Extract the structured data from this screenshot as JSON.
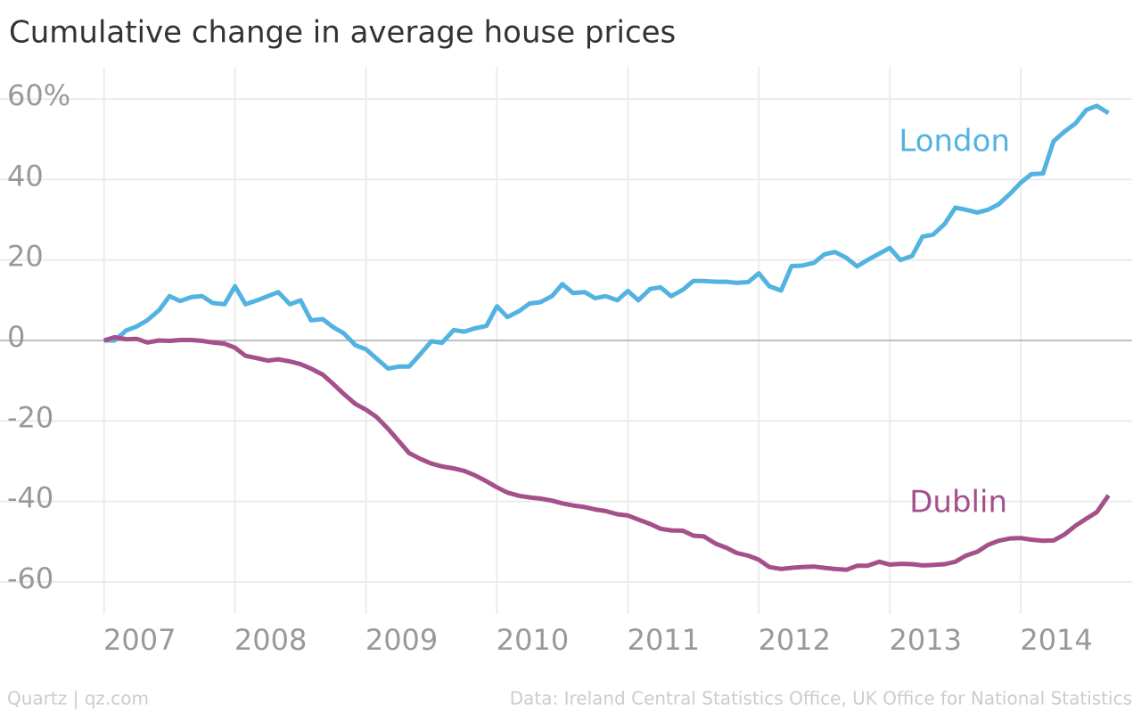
{
  "chart_data": {
    "type": "line",
    "title": "Cumulative change in average house prices",
    "source_left": "Quartz | qz.com",
    "source_right": "Data: Ireland Central Statistics Office, UK Office for National Statistics",
    "x": [
      2007,
      2007.08,
      2007.17,
      2007.25,
      2007.33,
      2007.42,
      2007.5,
      2007.58,
      2007.67,
      2007.75,
      2007.83,
      2007.92,
      2008,
      2008.08,
      2008.17,
      2008.25,
      2008.33,
      2008.42,
      2008.5,
      2008.58,
      2008.67,
      2008.75,
      2008.83,
      2008.92,
      2009,
      2009.08,
      2009.17,
      2009.25,
      2009.33,
      2009.42,
      2009.5,
      2009.58,
      2009.67,
      2009.75,
      2009.83,
      2009.92,
      2010,
      2010.08,
      2010.17,
      2010.25,
      2010.33,
      2010.42,
      2010.5,
      2010.58,
      2010.67,
      2010.75,
      2010.83,
      2010.92,
      2011,
      2011.08,
      2011.17,
      2011.25,
      2011.33,
      2011.42,
      2011.5,
      2011.58,
      2011.67,
      2011.75,
      2011.83,
      2011.92,
      2012,
      2012.08,
      2012.17,
      2012.25,
      2012.33,
      2012.42,
      2012.5,
      2012.58,
      2012.67,
      2012.75,
      2012.83,
      2012.92,
      2013,
      2013.08,
      2013.17,
      2013.25,
      2013.33,
      2013.42,
      2013.5,
      2013.58,
      2013.67,
      2013.75,
      2013.83,
      2013.92,
      2014,
      2014.08,
      2014.17,
      2014.25,
      2014.33,
      2014.42,
      2014.5,
      2014.58,
      2014.67
    ],
    "series": [
      {
        "name": "London",
        "color": "#53b3e0",
        "values": [
          0,
          0,
          2.5,
          3.5,
          5,
          7.5,
          11,
          9.8,
          10.8,
          11,
          9.3,
          9,
          13.5,
          9,
          10,
          11,
          12,
          9,
          10,
          5,
          5.3,
          3.3,
          1.8,
          -1.2,
          -2.2,
          -4.5,
          -7,
          -6.5,
          -6.5,
          -3.2,
          -0.2,
          -0.6,
          2.6,
          2.2,
          3,
          3.6,
          8.5,
          5.8,
          7.3,
          9.2,
          9.5,
          11,
          14,
          11.8,
          12,
          10.5,
          11,
          10,
          12.3,
          10,
          12.8,
          13.2,
          11,
          12.6,
          14.8,
          14.8,
          14.6,
          14.6,
          14.3,
          14.5,
          16.7,
          13.5,
          12.4,
          18.5,
          18.6,
          19.3,
          21.4,
          22,
          20.5,
          18.4,
          20,
          21.6,
          23,
          20,
          21,
          25.8,
          26.3,
          29,
          33,
          32.5,
          31.8,
          32.5,
          33.8,
          36.5,
          39.2,
          41.3,
          41.5,
          49.5,
          51.8,
          54,
          57.3,
          58.3,
          56.5
        ]
      },
      {
        "name": "Dublin",
        "color": "#a4508a",
        "values": [
          0,
          0.8,
          0.3,
          0.4,
          -0.5,
          0,
          -0.1,
          0.1,
          0.1,
          -0.1,
          -0.5,
          -0.8,
          -1.8,
          -3.8,
          -4.4,
          -5,
          -4.7,
          -5.2,
          -5.9,
          -7,
          -8.5,
          -10.8,
          -13.3,
          -15.8,
          -17.2,
          -19,
          -22,
          -25,
          -28,
          -29.5,
          -30.6,
          -31.3,
          -31.8,
          -32.4,
          -33.5,
          -35,
          -36.5,
          -37.8,
          -38.6,
          -39,
          -39.3,
          -39.8,
          -40.5,
          -41,
          -41.4,
          -42,
          -42.4,
          -43.2,
          -43.5,
          -44.5,
          -45.6,
          -46.8,
          -47.2,
          -47.3,
          -48.5,
          -48.7,
          -50.5,
          -51.5,
          -52.8,
          -53.5,
          -54.5,
          -56.3,
          -56.8,
          -56.5,
          -56.3,
          -56.2,
          -56.5,
          -56.8,
          -57,
          -56,
          -56,
          -55,
          -55.7,
          -55.5,
          -55.6,
          -55.9,
          -55.8,
          -55.6,
          -55,
          -53.5,
          -52.5,
          -50.8,
          -49.8,
          -49.2,
          -49.1,
          -49.5,
          -49.8,
          -49.7,
          -48.3,
          -46,
          -44.3,
          -42.7,
          -38.5
        ]
      }
    ],
    "xlim": [
      2006.75,
      2014.85
    ],
    "xticks": [
      2007,
      2008,
      2009,
      2010,
      2011,
      2012,
      2013,
      2014
    ],
    "ylim": [
      -68,
      68
    ],
    "yticks": [
      {
        "value": 60,
        "label": "60%"
      },
      40,
      20,
      0,
      -20,
      -40,
      -60
    ],
    "grid": true
  }
}
